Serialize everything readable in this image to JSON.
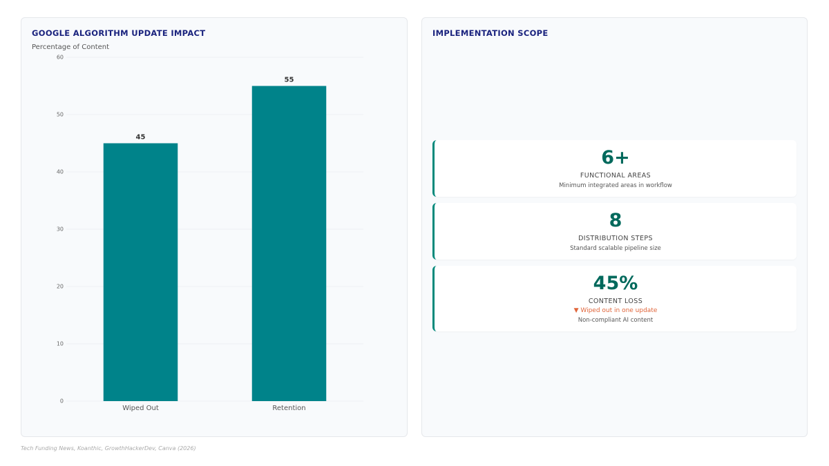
{
  "chart_data": {
    "type": "bar",
    "title": "GOOGLE ALGORITHM UPDATE IMPACT",
    "y_label": "Percentage of Content",
    "categories": [
      "Wiped Out",
      "Retention"
    ],
    "values": [
      45,
      55
    ],
    "color": "#00838a",
    "ylim": [
      0,
      60
    ],
    "yticks": [
      0,
      10,
      20,
      30,
      40,
      50,
      60
    ],
    "grid": true
  },
  "scope": {
    "title": "IMPLEMENTATION SCOPE",
    "cards": [
      {
        "value": "6+",
        "label": "FUNCTIONAL AREAS",
        "description": "Minimum integrated areas in workflow"
      },
      {
        "value": "8",
        "label": "DISTRIBUTION STEPS",
        "description": "Standard scalable pipeline size"
      },
      {
        "value": "45%",
        "label": "CONTENT LOSS",
        "trend": "▼ Wiped out in one update",
        "description": "Non-compliant AI content"
      }
    ]
  },
  "footer": {
    "source": "Tech Funding News, Koanthic, GrowthHackerDev, Canva (2026)"
  }
}
